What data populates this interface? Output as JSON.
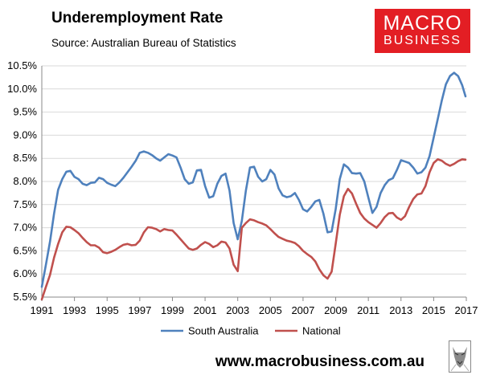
{
  "header": {
    "title": "Underemployment Rate",
    "subtitle": "Source: Australian Bureau of Statistics"
  },
  "logo": {
    "line1": "MACRO",
    "line2": "BUSINESS"
  },
  "footer": {
    "url": "www.macrobusiness.com.au"
  },
  "chart_data": {
    "type": "line",
    "title": "Underemployment Rate",
    "subtitle": "Source: Australian Bureau of Statistics",
    "xlabel": "",
    "ylabel": "",
    "xlim": [
      1991,
      2017
    ],
    "ylim": [
      5.5,
      10.5
    ],
    "x_ticks": [
      1991,
      1993,
      1995,
      1997,
      1999,
      2001,
      2003,
      2005,
      2007,
      2009,
      2011,
      2013,
      2015,
      2017
    ],
    "y_ticks": [
      "5.5%",
      "6.0%",
      "6.5%",
      "7.0%",
      "7.5%",
      "8.0%",
      "8.5%",
      "9.0%",
      "9.5%",
      "10.0%",
      "10.5%"
    ],
    "y_tick_values": [
      5.5,
      6.0,
      6.5,
      7.0,
      7.5,
      8.0,
      8.5,
      9.0,
      9.5,
      10.0,
      10.5
    ],
    "grid": "horizontal",
    "legend": "bottom",
    "series": [
      {
        "name": "South Australia",
        "color": "#4f81bd",
        "points": [
          [
            1991.0,
            5.72
          ],
          [
            1991.25,
            6.2
          ],
          [
            1991.5,
            6.7
          ],
          [
            1991.75,
            7.3
          ],
          [
            1992.0,
            7.82
          ],
          [
            1992.25,
            8.05
          ],
          [
            1992.5,
            8.21
          ],
          [
            1992.75,
            8.23
          ],
          [
            1993.0,
            8.1
          ],
          [
            1993.25,
            8.05
          ],
          [
            1993.5,
            7.95
          ],
          [
            1993.75,
            7.92
          ],
          [
            1994.0,
            7.97
          ],
          [
            1994.25,
            7.98
          ],
          [
            1994.5,
            8.08
          ],
          [
            1994.75,
            8.05
          ],
          [
            1995.0,
            7.97
          ],
          [
            1995.25,
            7.93
          ],
          [
            1995.5,
            7.9
          ],
          [
            1995.75,
            7.98
          ],
          [
            1996.0,
            8.08
          ],
          [
            1996.25,
            8.2
          ],
          [
            1996.5,
            8.32
          ],
          [
            1996.75,
            8.45
          ],
          [
            1997.0,
            8.62
          ],
          [
            1997.25,
            8.65
          ],
          [
            1997.5,
            8.62
          ],
          [
            1997.75,
            8.57
          ],
          [
            1998.0,
            8.5
          ],
          [
            1998.25,
            8.45
          ],
          [
            1998.5,
            8.52
          ],
          [
            1998.75,
            8.59
          ],
          [
            1999.0,
            8.56
          ],
          [
            1999.25,
            8.52
          ],
          [
            1999.5,
            8.3
          ],
          [
            1999.75,
            8.05
          ],
          [
            2000.0,
            7.95
          ],
          [
            2000.25,
            7.98
          ],
          [
            2000.5,
            8.24
          ],
          [
            2000.75,
            8.25
          ],
          [
            2001.0,
            7.9
          ],
          [
            2001.25,
            7.65
          ],
          [
            2001.5,
            7.68
          ],
          [
            2001.75,
            7.95
          ],
          [
            2002.0,
            8.12
          ],
          [
            2002.25,
            8.17
          ],
          [
            2002.5,
            7.8
          ],
          [
            2002.75,
            7.1
          ],
          [
            2003.0,
            6.75
          ],
          [
            2003.25,
            7.15
          ],
          [
            2003.5,
            7.8
          ],
          [
            2003.75,
            8.3
          ],
          [
            2004.0,
            8.32
          ],
          [
            2004.25,
            8.1
          ],
          [
            2004.5,
            8.0
          ],
          [
            2004.75,
            8.05
          ],
          [
            2005.0,
            8.25
          ],
          [
            2005.25,
            8.15
          ],
          [
            2005.5,
            7.85
          ],
          [
            2005.75,
            7.7
          ],
          [
            2006.0,
            7.66
          ],
          [
            2006.25,
            7.68
          ],
          [
            2006.5,
            7.75
          ],
          [
            2006.75,
            7.6
          ],
          [
            2007.0,
            7.4
          ],
          [
            2007.25,
            7.35
          ],
          [
            2007.5,
            7.45
          ],
          [
            2007.75,
            7.57
          ],
          [
            2008.0,
            7.6
          ],
          [
            2008.25,
            7.3
          ],
          [
            2008.5,
            6.9
          ],
          [
            2008.75,
            6.92
          ],
          [
            2009.0,
            7.4
          ],
          [
            2009.25,
            8.05
          ],
          [
            2009.5,
            8.37
          ],
          [
            2009.75,
            8.3
          ],
          [
            2010.0,
            8.18
          ],
          [
            2010.25,
            8.17
          ],
          [
            2010.5,
            8.18
          ],
          [
            2010.75,
            8.0
          ],
          [
            2011.0,
            7.65
          ],
          [
            2011.25,
            7.32
          ],
          [
            2011.5,
            7.45
          ],
          [
            2011.75,
            7.75
          ],
          [
            2012.0,
            7.92
          ],
          [
            2012.25,
            8.03
          ],
          [
            2012.5,
            8.07
          ],
          [
            2012.75,
            8.25
          ],
          [
            2013.0,
            8.46
          ],
          [
            2013.25,
            8.43
          ],
          [
            2013.5,
            8.4
          ],
          [
            2013.75,
            8.3
          ],
          [
            2014.0,
            8.17
          ],
          [
            2014.25,
            8.2
          ],
          [
            2014.5,
            8.3
          ],
          [
            2014.75,
            8.55
          ],
          [
            2015.0,
            8.95
          ],
          [
            2015.25,
            9.35
          ],
          [
            2015.5,
            9.75
          ],
          [
            2015.75,
            10.1
          ],
          [
            2016.0,
            10.28
          ],
          [
            2016.25,
            10.35
          ],
          [
            2016.5,
            10.28
          ],
          [
            2016.75,
            10.08
          ],
          [
            2016.95,
            9.84
          ]
        ]
      },
      {
        "name": "National",
        "color": "#c0504d",
        "points": [
          [
            1991.0,
            5.45
          ],
          [
            1991.25,
            5.72
          ],
          [
            1991.5,
            5.98
          ],
          [
            1991.75,
            6.35
          ],
          [
            1992.0,
            6.65
          ],
          [
            1992.25,
            6.9
          ],
          [
            1992.5,
            7.02
          ],
          [
            1992.75,
            7.01
          ],
          [
            1993.0,
            6.95
          ],
          [
            1993.25,
            6.88
          ],
          [
            1993.5,
            6.78
          ],
          [
            1993.75,
            6.69
          ],
          [
            1994.0,
            6.62
          ],
          [
            1994.25,
            6.62
          ],
          [
            1994.5,
            6.57
          ],
          [
            1994.75,
            6.47
          ],
          [
            1995.0,
            6.45
          ],
          [
            1995.25,
            6.48
          ],
          [
            1995.5,
            6.52
          ],
          [
            1995.75,
            6.58
          ],
          [
            1996.0,
            6.63
          ],
          [
            1996.25,
            6.65
          ],
          [
            1996.5,
            6.62
          ],
          [
            1996.75,
            6.63
          ],
          [
            1997.0,
            6.72
          ],
          [
            1997.25,
            6.9
          ],
          [
            1997.5,
            7.01
          ],
          [
            1997.75,
            7.0
          ],
          [
            1998.0,
            6.97
          ],
          [
            1998.25,
            6.92
          ],
          [
            1998.5,
            6.97
          ],
          [
            1998.75,
            6.95
          ],
          [
            1999.0,
            6.94
          ],
          [
            1999.25,
            6.85
          ],
          [
            1999.5,
            6.75
          ],
          [
            1999.75,
            6.65
          ],
          [
            2000.0,
            6.55
          ],
          [
            2000.25,
            6.52
          ],
          [
            2000.5,
            6.55
          ],
          [
            2000.75,
            6.63
          ],
          [
            2001.0,
            6.69
          ],
          [
            2001.25,
            6.65
          ],
          [
            2001.5,
            6.58
          ],
          [
            2001.75,
            6.62
          ],
          [
            2002.0,
            6.7
          ],
          [
            2002.25,
            6.68
          ],
          [
            2002.5,
            6.55
          ],
          [
            2002.75,
            6.2
          ],
          [
            2003.0,
            6.06
          ],
          [
            2003.25,
            7.0
          ],
          [
            2003.5,
            7.1
          ],
          [
            2003.75,
            7.18
          ],
          [
            2004.0,
            7.16
          ],
          [
            2004.25,
            7.12
          ],
          [
            2004.5,
            7.09
          ],
          [
            2004.75,
            7.05
          ],
          [
            2005.0,
            6.97
          ],
          [
            2005.25,
            6.88
          ],
          [
            2005.5,
            6.8
          ],
          [
            2005.75,
            6.76
          ],
          [
            2006.0,
            6.72
          ],
          [
            2006.25,
            6.7
          ],
          [
            2006.5,
            6.67
          ],
          [
            2006.75,
            6.6
          ],
          [
            2007.0,
            6.5
          ],
          [
            2007.25,
            6.43
          ],
          [
            2007.5,
            6.37
          ],
          [
            2007.75,
            6.27
          ],
          [
            2008.0,
            6.1
          ],
          [
            2008.25,
            5.97
          ],
          [
            2008.5,
            5.9
          ],
          [
            2008.75,
            6.05
          ],
          [
            2009.0,
            6.65
          ],
          [
            2009.25,
            7.28
          ],
          [
            2009.5,
            7.68
          ],
          [
            2009.75,
            7.84
          ],
          [
            2010.0,
            7.74
          ],
          [
            2010.25,
            7.52
          ],
          [
            2010.5,
            7.32
          ],
          [
            2010.75,
            7.2
          ],
          [
            2011.0,
            7.12
          ],
          [
            2011.25,
            7.06
          ],
          [
            2011.5,
            7.0
          ],
          [
            2011.75,
            7.1
          ],
          [
            2012.0,
            7.23
          ],
          [
            2012.25,
            7.31
          ],
          [
            2012.5,
            7.32
          ],
          [
            2012.75,
            7.22
          ],
          [
            2013.0,
            7.17
          ],
          [
            2013.25,
            7.25
          ],
          [
            2013.5,
            7.45
          ],
          [
            2013.75,
            7.62
          ],
          [
            2014.0,
            7.72
          ],
          [
            2014.25,
            7.74
          ],
          [
            2014.5,
            7.9
          ],
          [
            2014.75,
            8.2
          ],
          [
            2015.0,
            8.4
          ],
          [
            2015.25,
            8.48
          ],
          [
            2015.5,
            8.45
          ],
          [
            2015.75,
            8.38
          ],
          [
            2016.0,
            8.34
          ],
          [
            2016.25,
            8.38
          ],
          [
            2016.5,
            8.44
          ],
          [
            2016.75,
            8.48
          ],
          [
            2016.95,
            8.47
          ]
        ]
      }
    ]
  }
}
